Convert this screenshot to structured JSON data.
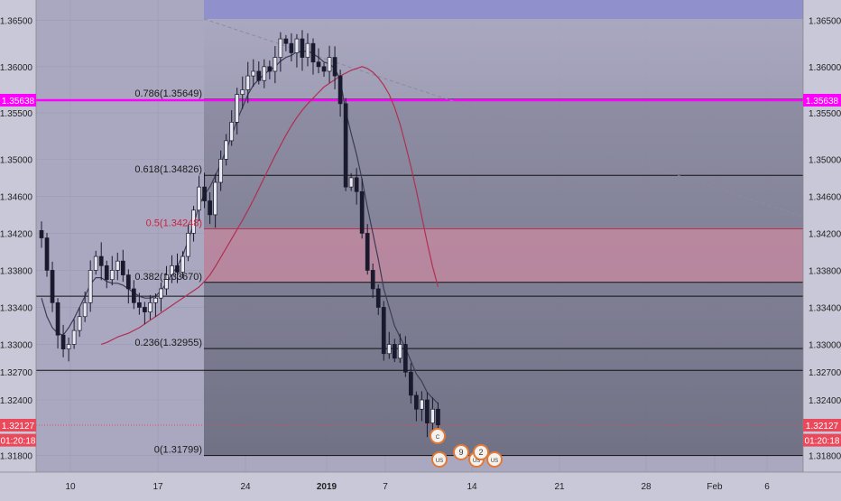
{
  "colors": {
    "plot_background": "#a9a8c0",
    "axis_background": "#c9c8d8",
    "fib_zone": "#6c6c80",
    "highlight_zone": "#c98aa2",
    "top_box": "#8f90cc",
    "price_line": "#ff00ff",
    "current_price": "#e9495a",
    "candle": "#1a1a2e",
    "moving_average_fast": "#3c3c55",
    "moving_average_slow": "#b03050",
    "event_badge": "#e07a3a"
  },
  "chart_data": {
    "type": "candlestick",
    "y_axis": {
      "range": [
        1.3162,
        1.3672
      ],
      "ticks": [
        "1.36500",
        "1.36000",
        "1.35500",
        "1.35000",
        "1.34600",
        "1.34200",
        "1.33800",
        "1.33400",
        "1.33000",
        "1.32700",
        "1.32400",
        "1.31800"
      ]
    },
    "x_axis": {
      "ticks": [
        "10",
        "17",
        "24",
        "2019",
        "7",
        "14",
        "21",
        "28",
        "Feb",
        "6"
      ]
    },
    "price_tags": [
      {
        "label": "1.35638",
        "value": 1.35638,
        "role": "horizontal-line"
      },
      {
        "label": "1.32127",
        "value": 1.32127,
        "role": "current-price"
      },
      {
        "label": "01:20:18",
        "value": 1.31965,
        "role": "countdown"
      }
    ],
    "fibonacci_levels": [
      {
        "label": "0.786(1.35649)",
        "value": 1.35649,
        "highlight": false
      },
      {
        "label": "0.618(1.34826)",
        "value": 1.34826,
        "highlight": false
      },
      {
        "label": "0.5(1.34248)",
        "value": 1.34248,
        "highlight": true
      },
      {
        "label": "0.382(1.33670)",
        "value": 1.3367,
        "highlight": false
      },
      {
        "label": "0.236(1.32955)",
        "value": 1.32955,
        "highlight": false
      },
      {
        "label": "0(1.31799)",
        "value": 1.31799,
        "highlight": false
      }
    ],
    "extra_levels": [
      1.3352,
      1.3272
    ],
    "highlight_zone": {
      "from": 1.3367,
      "to": 1.34248
    },
    "close_series": [
      1.3415,
      1.338,
      1.3345,
      1.331,
      1.3295,
      1.33,
      1.3315,
      1.333,
      1.3345,
      1.338,
      1.3395,
      1.3385,
      1.337,
      1.338,
      1.339,
      1.3375,
      1.336,
      1.3345,
      1.334,
      1.3335,
      1.3345,
      1.335,
      1.336,
      1.3375,
      1.3385,
      1.3378,
      1.3395,
      1.342,
      1.3445,
      1.347,
      1.3455,
      1.344,
      1.3475,
      1.35,
      1.352,
      1.354,
      1.357,
      1.3575,
      1.359,
      1.3595,
      1.3585,
      1.36,
      1.3595,
      1.361,
      1.363,
      1.3625,
      1.3615,
      1.363,
      1.361,
      1.3625,
      1.3605,
      1.36,
      1.3595,
      1.361,
      1.359,
      1.356,
      1.347,
      1.348,
      1.3465,
      1.342,
      1.338,
      1.336,
      1.334,
      1.329,
      1.33,
      1.3285,
      1.33,
      1.327,
      1.3245,
      1.323,
      1.324,
      1.3215,
      1.323,
      1.3213
    ],
    "ma_fast": [
      1.335,
      1.333,
      1.3318,
      1.3312,
      1.331,
      1.3318,
      1.3328,
      1.334,
      1.3352,
      1.3365,
      1.3372,
      1.3372,
      1.3368,
      1.3366,
      1.3366,
      1.3364,
      1.336,
      1.3356,
      1.3352,
      1.335,
      1.335,
      1.3352,
      1.3358,
      1.3366,
      1.3376,
      1.3384,
      1.3396,
      1.3412,
      1.343,
      1.345,
      1.3462,
      1.347,
      1.3482,
      1.3495,
      1.351,
      1.3525,
      1.3542,
      1.3556,
      1.357,
      1.358,
      1.3586,
      1.3592,
      1.3596,
      1.36,
      1.3606,
      1.361,
      1.3612,
      1.3616,
      1.3616,
      1.3617,
      1.3614,
      1.361,
      1.3605,
      1.3603,
      1.3598,
      1.3586,
      1.3552,
      1.3528,
      1.3505,
      1.3478,
      1.3448,
      1.342,
      1.3392,
      1.336,
      1.334,
      1.332,
      1.3308,
      1.3296,
      1.3282,
      1.3268,
      1.326,
      1.3248,
      1.3242,
      1.3236
    ],
    "ma_slow": [
      1.33,
      1.3302,
      1.3305,
      1.3308,
      1.331,
      1.3312,
      1.3315,
      1.3318,
      1.3322,
      1.3326,
      1.333,
      1.3334,
      1.3338,
      1.3342,
      1.3346,
      1.335,
      1.3354,
      1.3358,
      1.3362,
      1.3368,
      1.3375,
      1.3384,
      1.3394,
      1.3404,
      1.3414,
      1.3424,
      1.3434,
      1.3445,
      1.3456,
      1.3468,
      1.348,
      1.3492,
      1.3504,
      1.3515,
      1.3526,
      1.3536,
      1.3545,
      1.3553,
      1.356,
      1.3566,
      1.3572,
      1.3578,
      1.3582,
      1.3586,
      1.359,
      1.3593,
      1.3596,
      1.3598,
      1.36,
      1.3598,
      1.3594,
      1.3588,
      1.358,
      1.357,
      1.3556,
      1.3538,
      1.3516,
      1.3492,
      1.3466,
      1.3438,
      1.341,
      1.3384,
      1.3362
    ],
    "events": [
      {
        "text": "C",
        "kind": "country-flag"
      },
      {
        "text": "US",
        "kind": "country-flag"
      },
      {
        "text": "9",
        "kind": "count"
      },
      {
        "text": "US",
        "kind": "country-flag"
      },
      {
        "text": "2",
        "kind": "count"
      },
      {
        "text": "US",
        "kind": "country-flag"
      }
    ]
  }
}
